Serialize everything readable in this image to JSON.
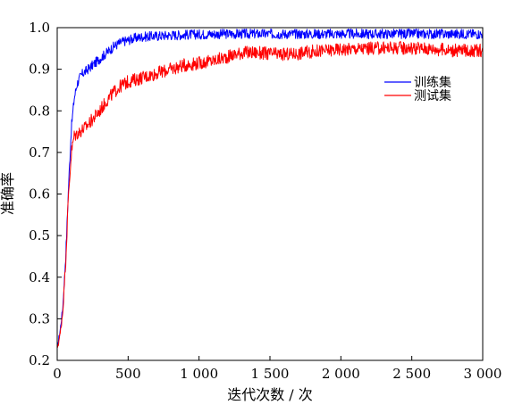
{
  "chart_data": {
    "type": "line",
    "title": "",
    "xlabel": "迭代次数 / 次",
    "ylabel": "准确率",
    "xlim": [
      0,
      3000
    ],
    "ylim": [
      0.2,
      1.0
    ],
    "x_ticks": [
      0,
      500,
      1000,
      1500,
      2000,
      2500,
      3000
    ],
    "x_tick_labels": [
      "0",
      "500",
      "1 000",
      "1 500",
      "2 000",
      "2 500",
      "3 000"
    ],
    "y_ticks": [
      0.2,
      0.3,
      0.4,
      0.5,
      0.6,
      0.7,
      0.8,
      0.9,
      1.0
    ],
    "y_tick_labels": [
      "0.2",
      "0.3",
      "0.4",
      "0.5",
      "0.6",
      "0.7",
      "0.8",
      "0.9",
      "1.0"
    ],
    "grid": false,
    "legend_position": "top-right",
    "series": [
      {
        "name": "训练集",
        "color": "#0000ff",
        "x": [
          0,
          20,
          40,
          60,
          80,
          100,
          120,
          140,
          160,
          180,
          200,
          250,
          300,
          350,
          400,
          450,
          500,
          550,
          600,
          700,
          800,
          900,
          1000,
          1200,
          1400,
          1600,
          1800,
          2000,
          2200,
          2400,
          2600,
          2800,
          3000
        ],
        "values": [
          0.23,
          0.27,
          0.33,
          0.45,
          0.62,
          0.76,
          0.83,
          0.865,
          0.88,
          0.89,
          0.895,
          0.91,
          0.925,
          0.94,
          0.955,
          0.965,
          0.97,
          0.975,
          0.978,
          0.98,
          0.982,
          0.983,
          0.984,
          0.985,
          0.985,
          0.985,
          0.985,
          0.985,
          0.985,
          0.985,
          0.985,
          0.985,
          0.985
        ]
      },
      {
        "name": "测试集",
        "color": "#ff0000",
        "x": [
          0,
          20,
          40,
          60,
          80,
          100,
          120,
          140,
          160,
          180,
          200,
          250,
          300,
          350,
          400,
          450,
          500,
          550,
          600,
          700,
          800,
          900,
          1000,
          1100,
          1200,
          1300,
          1400,
          1500,
          1600,
          1700,
          1800,
          1900,
          2000,
          2200,
          2400,
          2600,
          2800,
          3000
        ],
        "values": [
          0.23,
          0.26,
          0.32,
          0.44,
          0.6,
          0.7,
          0.74,
          0.745,
          0.75,
          0.755,
          0.76,
          0.78,
          0.8,
          0.825,
          0.845,
          0.86,
          0.87,
          0.875,
          0.88,
          0.89,
          0.9,
          0.91,
          0.915,
          0.92,
          0.93,
          0.94,
          0.94,
          0.937,
          0.935,
          0.938,
          0.943,
          0.945,
          0.948,
          0.95,
          0.952,
          0.95,
          0.945,
          0.945
        ]
      }
    ]
  }
}
